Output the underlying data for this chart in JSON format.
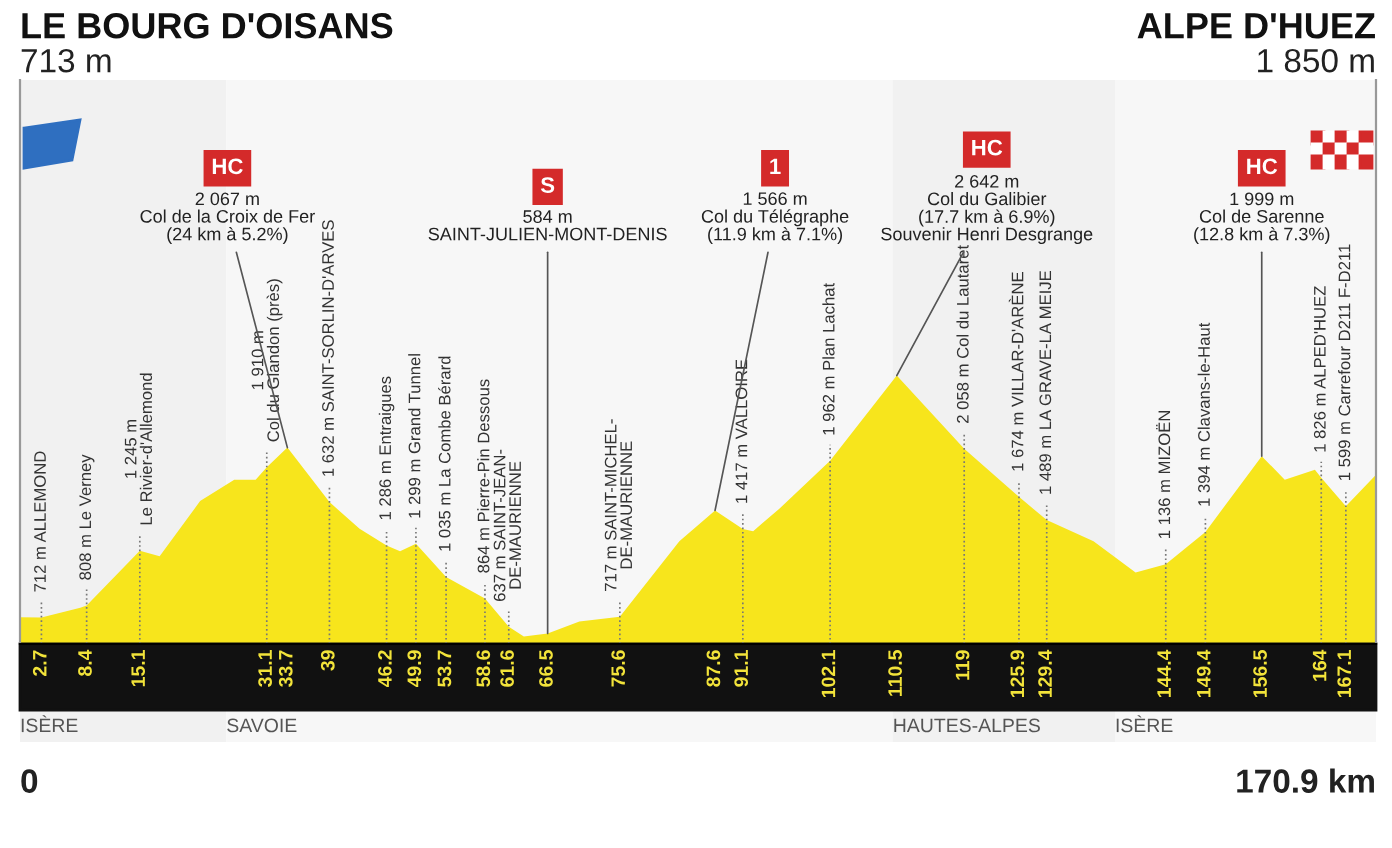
{
  "chart_data": {
    "type": "area",
    "title": "LE BOURG D'OISANS",
    "subtitle": "713 m",
    "x": [
      0,
      2.7,
      7.6,
      8.4,
      15.1,
      17.6,
      22.7,
      27,
      29.7,
      31.1,
      33.7,
      39,
      42.8,
      46.2,
      47.9,
      49.9,
      53.7,
      58.6,
      61.6,
      63.5,
      66.5,
      70.5,
      75.6,
      83.1,
      87.6,
      91.1,
      92.4,
      95.7,
      102.1,
      110.5,
      119,
      125.9,
      129.4,
      135.3,
      140.6,
      144.4,
      149.4,
      156.5,
      159.4,
      163.2,
      164,
      167.1,
      170.9
    ],
    "series": [
      {
        "color": "#f7e51c",
        "values": [
          713,
          712,
          790,
          808,
          1245,
          1200,
          1640,
          1810,
          1810,
          1910,
          2067,
          1632,
          1420,
          1286,
          1240,
          1299,
          1035,
          864,
          637,
          560,
          584,
          680,
          717,
          1320,
          1566,
          1417,
          1400,
          1580,
          1962,
          2642,
          2058,
          1674,
          1489,
          1320,
          1070,
          1136,
          1394,
          1999,
          1810,
          1890,
          1826,
          1599,
          1850
        ],
        "value_labels": [
          null,
          "712 m ALLEMOND",
          null,
          "808 m Le Verney",
          "1 245 m\nLe Rivier-d'Allemond",
          null,
          null,
          null,
          null,
          "1 910 m\nCol du Glandon (près)",
          null,
          "1 632 m SAINT-SORLIN-D'ARVES",
          null,
          "1 286 m Entraigues",
          null,
          "1 299 m Grand Tunnel",
          "1 035 m La Combe Bérard",
          "864 m Pierre-Pin Dessous",
          "637 m SAINT-JEAN-\nDE-MAURIENNE",
          null,
          null,
          null,
          "717 m SAINT-MICHEL-\nDE-MAURIENNE",
          null,
          null,
          "1 417 m VALLOIRE",
          null,
          null,
          "1 962 m Plan Lachat",
          null,
          "2 058 m Col du Lautaret",
          "1 674 m VILLAR-D'ARÈNE",
          "1 489 m LA GRAVE-LA MEIJE",
          null,
          null,
          "1 136 m MIZOËN",
          "1 394 m Clavans-le-Haut",
          null,
          null,
          null,
          "1 826 m ALPED'HUEZ",
          "1 599 m Carrefour D211 F-D211",
          null
        ]
      }
    ],
    "xlim": [
      0,
      170.9
    ],
    "ylim": [
      500,
      5000
    ],
    "xticks": [
      2.7,
      8.4,
      15.1,
      31.1,
      33.7,
      39,
      46.2,
      49.9,
      53.7,
      58.6,
      61.6,
      66.5,
      75.6,
      87.6,
      91.1,
      102.1,
      110.5,
      119,
      125.9,
      129.4,
      144.4,
      149.4,
      156.5,
      164,
      167.1
    ],
    "tick_labels": "x",
    "bands": [
      {
        "axis": "x",
        "from": 0,
        "to": 26,
        "label": "ISÈRE",
        "color": "#f1f1f1"
      },
      {
        "axis": "x",
        "from": 26,
        "to": 110,
        "label": "SAVOIE",
        "color": "#f7f7f7"
      },
      {
        "axis": "x",
        "from": 110,
        "to": 138,
        "label": "HAUTES-ALPES",
        "color": "#f1f1f1"
      },
      {
        "axis": "x",
        "from": 138,
        "to": 170.9,
        "label": "ISÈRE",
        "color": "#f7f7f7"
      }
    ],
    "annotations": [
      "HC",
      {
        "text": "2 067 m\nCol de la Croix de Fer\n(24 km à 5.2%)",
        "x": 33.7,
        "y": 2067
      },
      "S",
      {
        "text": "584 m\nSAINT-JULIEN-MONT-DENIS",
        "x": 66.5,
        "y": 584
      },
      "1",
      {
        "text": "1 566 m\nCol du Télégraphe\n(11.9 km à 7.1%)",
        "x": 87.6,
        "y": 1566
      },
      "HC",
      {
        "text": "2 642 m\nCol du Galibier\n(17.7 km à 6.9%)\nSouvenir Henri Desgrange",
        "x": 110.5,
        "y": 2642
      },
      "HC",
      {
        "text": "1 999 m\nCol de Sarenne\n(12.8 km à 7.3%)",
        "x": 156.5,
        "y": 1999
      },
      "ALPE D'HUEZ\n1 850 m",
      "0",
      "170.9 km"
    ]
  }
}
